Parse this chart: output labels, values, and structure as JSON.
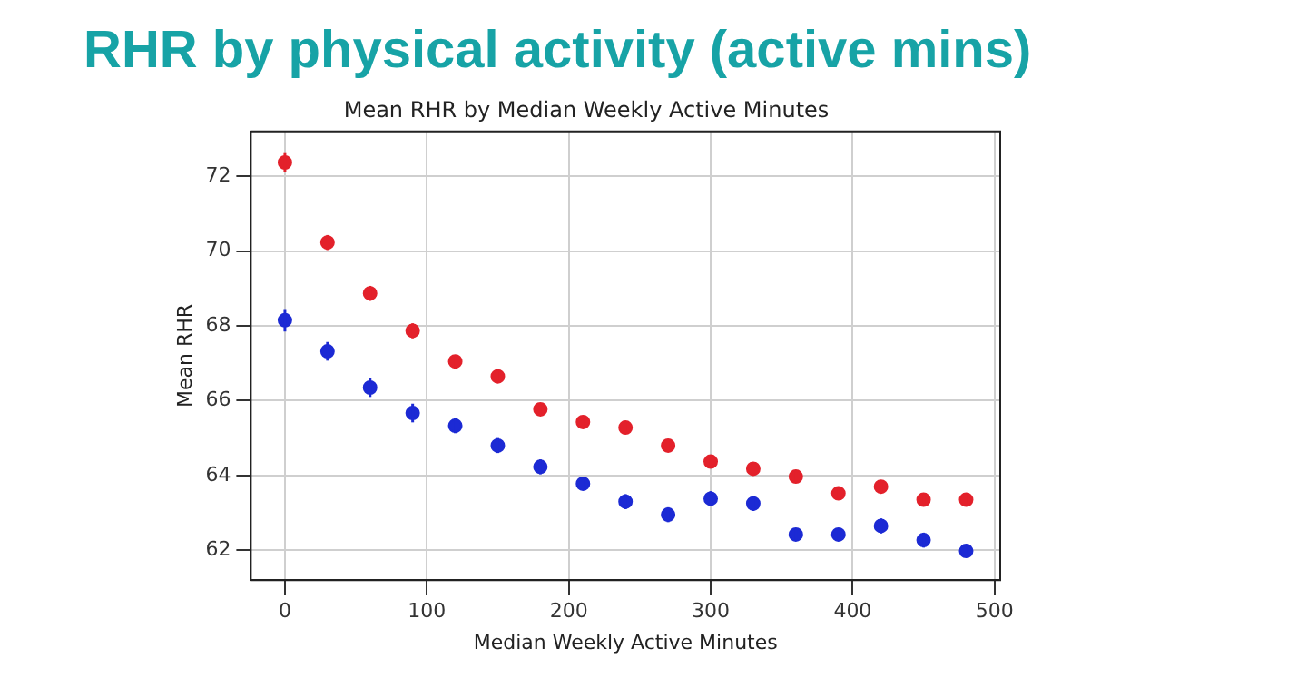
{
  "chart_data": {
    "type": "scatter",
    "title": "RHR by physical activity (active mins)",
    "subtitle": "Mean RHR by Median Weekly Active Minutes",
    "xlabel": "Median Weekly Active Minutes",
    "ylabel": "Mean RHR",
    "x": [
      0,
      30,
      60,
      90,
      120,
      150,
      180,
      210,
      240,
      270,
      300,
      330,
      360,
      390,
      420,
      450,
      480
    ],
    "series": [
      {
        "color": "#e3212b",
        "values": [
          72.37,
          70.23,
          68.87,
          67.87,
          67.05,
          66.65,
          65.77,
          65.43,
          65.28,
          64.8,
          64.37,
          64.18,
          63.97,
          63.52,
          63.7,
          63.35,
          63.35
        ],
        "errors": [
          0.25,
          0.2,
          0.2,
          0.2,
          0.15,
          0.15,
          0.15,
          0.15,
          0.15,
          0.15,
          0.15,
          0.15,
          0.15,
          0.15,
          0.15,
          0.15,
          0.15
        ]
      },
      {
        "color": "#1c2ad4",
        "values": [
          68.15,
          67.32,
          66.35,
          65.67,
          65.33,
          64.8,
          64.23,
          63.78,
          63.3,
          62.95,
          63.38,
          63.25,
          62.42,
          62.42,
          62.65,
          62.27,
          61.98
        ],
        "errors": [
          0.3,
          0.25,
          0.25,
          0.25,
          0.2,
          0.2,
          0.2,
          0.15,
          0.2,
          0.2,
          0.2,
          0.2,
          0.15,
          0.15,
          0.2,
          0.2,
          0.15
        ]
      }
    ],
    "xlim": [
      -24,
      504
    ],
    "xticks": [
      0,
      100,
      200,
      300,
      400,
      500
    ],
    "ylim": [
      61.2,
      73.2
    ],
    "yticks": [
      62,
      64,
      66,
      68,
      70,
      72
    ],
    "grid": true,
    "legend": false,
    "marker": "circle"
  }
}
